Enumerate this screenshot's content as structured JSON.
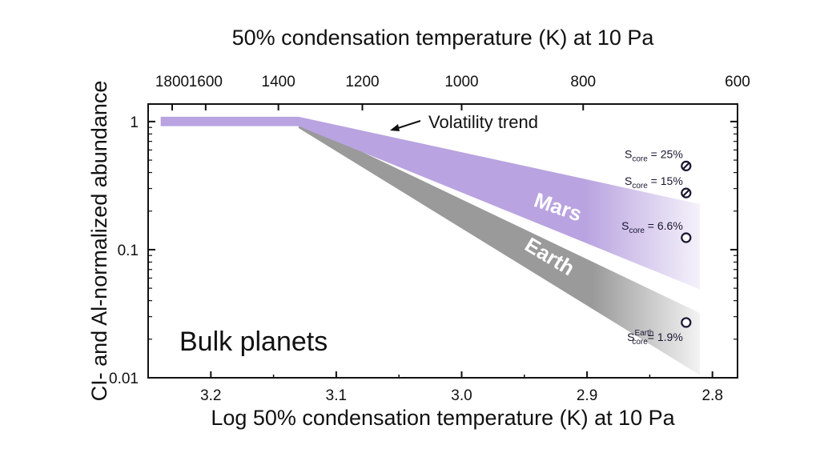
{
  "chart_data": {
    "type": "area",
    "xlabel": "Log 50% condensation temperature (K) at 10 Pa",
    "x2label": "50% condensation temperature (K) at 10 Pa",
    "ylabel": "CI- and Al-normalized abundance",
    "xlim": [
      3.25,
      2.78
    ],
    "ylim": [
      0.01,
      1.37
    ],
    "yscale": "log",
    "xticks": [
      "3.2",
      "3.1",
      "3.0",
      "2.9",
      "2.8"
    ],
    "x2ticks": [
      "1800",
      "1600",
      "1400",
      "1200",
      "1000",
      "800",
      "600"
    ],
    "yticks": [
      "1",
      "0.1",
      "0.01"
    ],
    "grid": false,
    "panel_label": "Bulk planets",
    "annotation": "Volatility trend",
    "colors": {
      "mars": "#b9a3e0",
      "earth": "#9a9a9a",
      "points": "#1a1530"
    },
    "series": [
      {
        "name": "Mars",
        "color": "#b9a3e0",
        "upper": [
          [
            3.24,
            1.09
          ],
          [
            3.13,
            1.09
          ],
          [
            2.81,
            0.227
          ]
        ],
        "lower": [
          [
            3.24,
            0.92
          ],
          [
            3.13,
            0.92
          ],
          [
            2.81,
            0.049
          ]
        ]
      },
      {
        "name": "Earth",
        "color": "#9a9a9a",
        "upper": [
          [
            3.13,
            1.0
          ],
          [
            2.81,
            0.032
          ]
        ],
        "lower": [
          [
            3.13,
            0.89
          ],
          [
            2.81,
            0.0105
          ]
        ]
      }
    ],
    "points": [
      {
        "label_main": "S",
        "label_sub": "core",
        "label_sup": "",
        "label_rest": " = 25%",
        "x": 2.821,
        "y": 0.45,
        "marker": "slashed-circle"
      },
      {
        "label_main": "S",
        "label_sub": "core",
        "label_sup": "",
        "label_rest": " = 15%",
        "x": 2.821,
        "y": 0.277,
        "marker": "slashed-circle"
      },
      {
        "label_main": "S",
        "label_sub": "core",
        "label_sup": "",
        "label_rest": " = 6.6%",
        "x": 2.821,
        "y": 0.124,
        "marker": "open-circle"
      },
      {
        "label_main": "S",
        "label_sub": "core",
        "label_sup": "Earth",
        "label_rest": "= 1.9%",
        "x": 2.821,
        "y": 0.027,
        "marker": "open-circle"
      }
    ]
  }
}
